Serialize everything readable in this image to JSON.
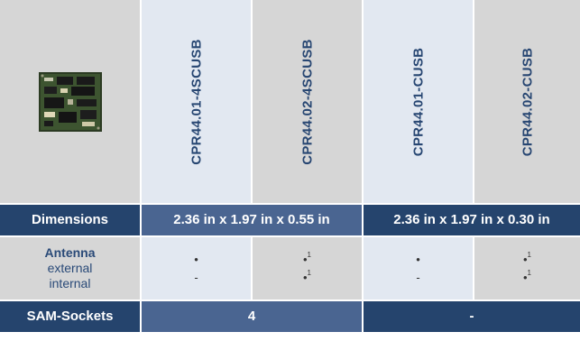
{
  "header": {
    "models": [
      "CPR44.01-4SCUSB",
      "CPR44.02-4SCUSB",
      "CPR44.01-CUSB",
      "CPR44.02-CUSB"
    ]
  },
  "dimensions": {
    "label": "Dimensions",
    "group1": "2.36 in x 1.97 in x 0.55 in",
    "group2": "2.36 in x 1.97 in x 0.30 in"
  },
  "antenna": {
    "label": "Antenna",
    "external_label": "external",
    "internal_label": "internal",
    "values": [
      {
        "external": "•",
        "external_note": "",
        "internal": "-",
        "internal_note": ""
      },
      {
        "external": "•",
        "external_note": "1",
        "internal": "•",
        "internal_note": "1"
      },
      {
        "external": "•",
        "external_note": "",
        "internal": "-",
        "internal_note": ""
      },
      {
        "external": "•",
        "external_note": "1",
        "internal": "•",
        "internal_note": "1"
      }
    ]
  },
  "sam": {
    "label": "SAM-Sockets",
    "group1": "4",
    "group2": "-"
  },
  "colors": {
    "gray": "#d6d6d6",
    "light": "#e2e8f1",
    "blue": "#4a6591",
    "dark": "#25446d",
    "text_blue": "#274672"
  }
}
